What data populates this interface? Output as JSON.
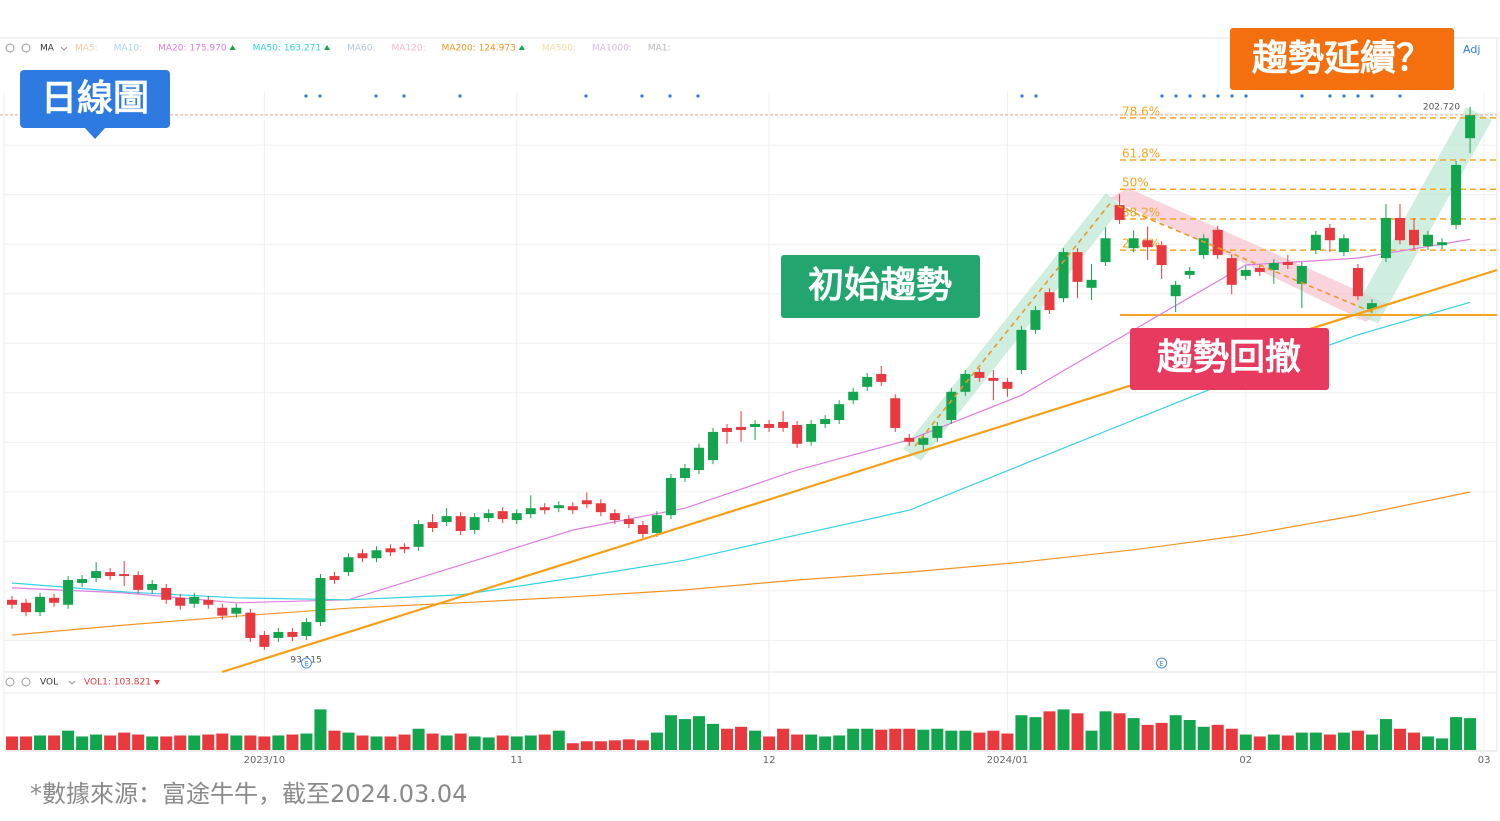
{
  "chart_data": {
    "type": "candlestick",
    "ylim": [
      89.03,
      205.73
    ],
    "ygrid": [
      195,
      185,
      175,
      165,
      155,
      145,
      135,
      125,
      115,
      105,
      95
    ],
    "xticks": [
      {
        "value": 18,
        "label": "2023/10"
      },
      {
        "value": 36,
        "label": "11"
      },
      {
        "value": 54,
        "label": "12"
      },
      {
        "value": 71,
        "label": "2024/01"
      },
      {
        "value": 88,
        "label": "02"
      },
      {
        "value": 105,
        "label": "03"
      }
    ],
    "up_color": "#12a54d",
    "down_color": "#e8393f",
    "open": [
      103.2,
      102.6,
      100.7,
      103.6,
      102.2,
      106.6,
      107.6,
      108.8,
      108.4,
      108.2,
      105.2,
      105.6,
      103.6,
      102.4,
      103.2,
      101.6,
      100.4,
      100.6,
      96.1,
      95.5,
      96.7,
      95.9,
      98.7,
      108.0,
      108.8,
      112.6,
      111.6,
      113.6,
      113.9,
      113.9,
      118.9,
      118.9,
      120.1,
      117.3,
      119.7,
      121.1,
      119.3,
      120.5,
      121.9,
      121.7,
      122.1,
      123.3,
      122.7,
      120.7,
      119.5,
      118.3,
      116.7,
      120.3,
      127.8,
      129.4,
      131.4,
      137.9,
      138.1,
      138.1,
      138.7,
      139.1,
      138.5,
      135.1,
      138.7,
      139.5,
      143.5,
      146.2,
      148.8,
      143.9,
      135.9,
      134.5,
      135.9,
      139.5,
      145.2,
      149.2,
      148.0,
      147.2,
      149.6,
      157.7,
      165.3,
      164.1,
      173.4,
      166.2,
      171.4,
      182.9,
      174.2,
      175.8,
      174.8,
      164.5,
      168.8,
      172.8,
      177.9,
      172.2,
      168.6,
      170.2,
      169.8,
      171.4,
      167.0,
      173.8,
      178.3,
      173.4,
      170.2,
      161.9,
      172.2,
      180.3,
      177.9,
      174.6,
      174.8,
      178.9,
      196.4
    ],
    "high": [
      104.0,
      103.4,
      104.6,
      104.4,
      108.0,
      108.2,
      110.8,
      109.6,
      111.0,
      109.0,
      107.2,
      106.4,
      104.4,
      104.6,
      104.0,
      102.4,
      102.4,
      101.4,
      96.9,
      97.5,
      97.5,
      99.5,
      108.4,
      108.8,
      112.6,
      113.4,
      114.0,
      114.4,
      114.6,
      119.3,
      120.5,
      121.7,
      120.9,
      120.7,
      121.5,
      121.9,
      121.5,
      124.3,
      122.7,
      123.1,
      122.9,
      124.9,
      123.5,
      121.5,
      120.3,
      119.1,
      121.1,
      128.6,
      130.6,
      134.7,
      137.9,
      138.7,
      141.3,
      139.5,
      139.5,
      141.3,
      139.3,
      139.5,
      140.5,
      143.5,
      146.0,
      149.0,
      150.4,
      144.7,
      136.7,
      136.7,
      139.1,
      146.0,
      149.6,
      150.0,
      149.6,
      148.0,
      158.5,
      162.5,
      166.1,
      174.2,
      174.2,
      171.0,
      178.4,
      185.1,
      177.8,
      178.6,
      175.6,
      167.6,
      170.4,
      177.0,
      178.7,
      173.0,
      170.6,
      171.0,
      172.0,
      172.8,
      171.4,
      177.7,
      179.1,
      177.0,
      171.0,
      163.9,
      183.1,
      183.1,
      180.3,
      177.7,
      176.2,
      191.8,
      202.72
    ],
    "low": [
      101.4,
      99.9,
      99.9,
      101.8,
      101.4,
      105.8,
      106.8,
      107.2,
      106.0,
      104.4,
      104.4,
      102.4,
      101.2,
      101.6,
      101.4,
      99.2,
      99.6,
      94.7,
      93.115,
      94.7,
      94.9,
      95.1,
      97.9,
      106.4,
      108.0,
      110.8,
      110.8,
      112.0,
      112.6,
      113.1,
      116.9,
      118.1,
      116.3,
      116.5,
      118.9,
      118.7,
      118.5,
      119.7,
      120.5,
      120.9,
      120.5,
      121.7,
      120.1,
      118.5,
      117.7,
      115.7,
      115.9,
      119.5,
      127.0,
      128.6,
      130.6,
      134.7,
      135.1,
      135.5,
      137.1,
      137.1,
      133.9,
      134.3,
      137.9,
      138.7,
      142.7,
      145.4,
      146.4,
      137.1,
      134.3,
      133.1,
      135.1,
      138.7,
      144.4,
      147.2,
      143.5,
      144.2,
      148.8,
      156.9,
      160.9,
      163.3,
      164.1,
      163.7,
      170.6,
      179.1,
      173.4,
      171.8,
      168.0,
      161.3,
      168.0,
      172.0,
      172.0,
      164.9,
      167.8,
      168.6,
      167.0,
      170.0,
      162.1,
      173.0,
      173.4,
      172.6,
      163.7,
      161.1,
      171.4,
      175.0,
      174.0,
      173.8,
      174.0,
      178.1,
      193.4
    ],
    "close": [
      102.2,
      100.7,
      103.8,
      102.6,
      107.2,
      107.4,
      109.0,
      108.0,
      108.0,
      105.2,
      106.4,
      103.2,
      102.0,
      103.8,
      102.2,
      100.0,
      101.6,
      95.5,
      93.7,
      96.7,
      95.7,
      98.7,
      107.6,
      107.2,
      111.8,
      111.6,
      113.2,
      112.8,
      113.4,
      118.5,
      117.7,
      120.1,
      117.1,
      119.9,
      120.7,
      119.5,
      120.7,
      121.7,
      121.3,
      122.3,
      121.3,
      122.5,
      120.9,
      119.3,
      118.5,
      116.5,
      120.3,
      127.8,
      129.8,
      133.9,
      137.1,
      137.1,
      137.5,
      138.7,
      137.9,
      137.9,
      134.7,
      138.7,
      139.7,
      142.7,
      145.2,
      148.2,
      147.2,
      137.9,
      135.1,
      135.9,
      138.3,
      145.2,
      148.8,
      148.0,
      147.4,
      145.8,
      157.7,
      161.7,
      161.7,
      173.4,
      167.4,
      167.8,
      176.2,
      179.9,
      176.2,
      174.4,
      170.8,
      166.8,
      169.6,
      176.2,
      172.8,
      166.8,
      169.8,
      169.4,
      171.2,
      170.8,
      170.6,
      176.9,
      175.8,
      176.2,
      164.5,
      163.1,
      180.3,
      175.8,
      174.8,
      176.9,
      175.4,
      191.0,
      201.1
    ],
    "price_markers": [
      {
        "index": 104,
        "value": 202.72,
        "label": "202.720"
      },
      {
        "index": 18,
        "value": 93.115,
        "label": "93.115"
      }
    ],
    "ma": {
      "label": "MA",
      "x": [
        0,
        8,
        16,
        24,
        32,
        40,
        48,
        56,
        64,
        72,
        80,
        88,
        96,
        104
      ],
      "series": [
        {
          "name": "MA20: 175.970",
          "color": "#e07ee0",
          "values": [
            105.6,
            104.6,
            102.6,
            103.2,
            110.2,
            117.3,
            121.7,
            129.4,
            135.5,
            144.5,
            157.7,
            170.8,
            172.2,
            175.97
          ]
        },
        {
          "name": "MA50: 163.271",
          "color": "#33d3e3",
          "values": [
            106.6,
            104.8,
            103.6,
            103.2,
            104.2,
            107.6,
            111.2,
            116.3,
            121.3,
            130.4,
            139.5,
            148.6,
            156.7,
            163.271
          ]
        },
        {
          "name": "MA200: 124.973",
          "color": "#f39426",
          "values": [
            96.1,
            98.1,
            99.9,
            101.5,
            102.6,
            103.8,
            105.2,
            107.2,
            108.8,
            110.8,
            113.3,
            116.3,
            120.3,
            124.973
          ]
        }
      ],
      "inactive": [
        {
          "name": "MA5:",
          "color": "#f7c9a6"
        },
        {
          "name": "MA10:",
          "color": "#a9d6f2"
        },
        {
          "name": "MA60:",
          "color": "#b7c6e6"
        },
        {
          "name": "MA120:",
          "color": "#f2b8c6"
        },
        {
          "name": "MA500:",
          "color": "#f5dca0"
        },
        {
          "name": "MA1000:",
          "color": "#d5b8ee"
        },
        {
          "name": "MA1:",
          "color": "#b8b8b8"
        }
      ],
      "adj": "Adj"
    },
    "fib": {
      "levels": [
        {
          "label": "78.6%",
          "price": 200.5
        },
        {
          "label": "61.8%",
          "price": 192.0
        },
        {
          "label": "50%",
          "price": 186.1
        },
        {
          "label": "38.2%",
          "price": 180.1
        },
        {
          "label": "23.6%",
          "price": 173.8
        }
      ],
      "base": 160.7,
      "color": "#f5a623"
    },
    "events": [
      {
        "index": 21,
        "label": "E"
      },
      {
        "index": 82,
        "label": "E"
      }
    ],
    "volume": {
      "name": "VOL",
      "legend": "VOL1: 103.821",
      "ylim": [
        0,
        189
      ],
      "values": [
        44.1,
        44.1,
        47.3,
        47.3,
        63.0,
        44.1,
        50.4,
        47.3,
        56.7,
        50.4,
        44.1,
        44.1,
        47.3,
        47.3,
        50.4,
        53.6,
        47.3,
        47.3,
        44.1,
        47.3,
        50.4,
        53.6,
        132.3,
        63.0,
        56.7,
        47.3,
        44.1,
        44.1,
        50.4,
        69.3,
        53.6,
        47.3,
        53.6,
        44.1,
        41.0,
        47.3,
        44.1,
        47.3,
        50.4,
        63.0,
        22.1,
        28.4,
        28.4,
        31.5,
        34.7,
        31.5,
        56.7,
        113.4,
        100.8,
        110.3,
        85.1,
        69.3,
        75.6,
        63.0,
        44.1,
        69.3,
        50.4,
        50.4,
        44.1,
        47.3,
        69.3,
        69.3,
        66.2,
        69.3,
        69.3,
        66.2,
        69.3,
        63.0,
        63.0,
        56.7,
        63.0,
        53.6,
        113.4,
        107.1,
        126.0,
        132.3,
        119.7,
        63.0,
        126.0,
        119.7,
        103.9,
        81.9,
        88.2,
        113.4,
        97.7,
        75.6,
        81.9,
        69.3,
        50.4,
        44.1,
        50.4,
        47.3,
        56.7,
        56.7,
        50.4,
        56.7,
        63.0,
        50.4,
        100.8,
        69.3,
        56.7,
        44.1,
        37.8,
        107.1,
        103.821
      ]
    }
  },
  "annotations": {
    "daily": "日線圖",
    "initial": "初始趨勢",
    "pullback": "趨勢回撤",
    "continue": "趨勢延續？"
  },
  "footnote": "*數據來源：富途牛牛，截至2024.03.04"
}
